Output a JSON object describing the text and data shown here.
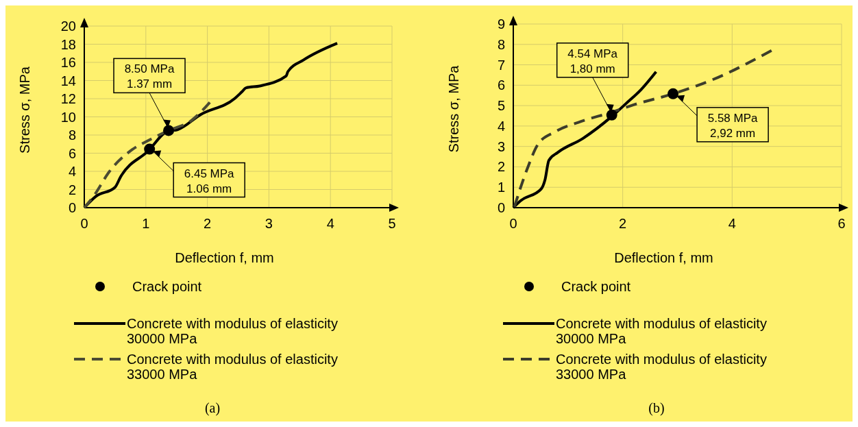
{
  "chart_data": [
    {
      "type": "line",
      "xlabel": "Deflection f, mm",
      "ylabel": "Stress σ, MPa",
      "xlim": [
        0,
        5
      ],
      "ylim": [
        0,
        20
      ],
      "xticks": [
        0,
        1,
        2,
        3,
        4,
        5
      ],
      "yticks": [
        0,
        2,
        4,
        6,
        8,
        10,
        12,
        14,
        16,
        18,
        20
      ],
      "grid": true,
      "legend": "bottom",
      "series": [
        {
          "type": "scatter",
          "name": "Crack point",
          "color": "#000000",
          "marker": "circle",
          "x": [
            1.06,
            1.37
          ],
          "values": [
            6.45,
            8.5
          ]
        },
        {
          "name": "Concrete with modulus of elasticity 30000 MPa",
          "color": "#000000",
          "line_style": "solid",
          "x": [
            0,
            0.19,
            0.5,
            0.59,
            1.04,
            1.35,
            1.52,
            1.89,
            2.44,
            2.56,
            2.63,
            2.85,
            3.28,
            3.31,
            3.56,
            4.11
          ],
          "values": [
            0,
            1.25,
            2.25,
            3.4,
            6.25,
            8.4,
            8.6,
            10.25,
            12,
            12.75,
            13.2,
            13.4,
            14.5,
            15,
            16.25,
            18.1
          ]
        },
        {
          "name": "Concrete with modulus of elasticity 33000 MPa",
          "color": "#4b4b33",
          "line_style": "dashed",
          "x": [
            0,
            0.15,
            0.41,
            0.78,
            1.04,
            1.37,
            1.74,
            2.04
          ],
          "values": [
            0,
            1.25,
            4,
            6.4,
            7.4,
            8.5,
            9.6,
            11.6
          ]
        }
      ],
      "annotations": [
        {
          "text": "8.50 MPa\n1.37 mm",
          "x": 1.37,
          "y": 8.5
        },
        {
          "text": "6.45 MPa\n1.06 mm",
          "x": 1.06,
          "y": 6.45
        },
        "(a)"
      ]
    },
    {
      "type": "line",
      "xlabel": "Deflection f, mm",
      "ylabel": "Stress σ, MPa",
      "xlim": [
        0,
        6
      ],
      "ylim": [
        0,
        9
      ],
      "xticks": [
        0,
        2,
        4,
        6
      ],
      "yticks": [
        0,
        1,
        2,
        3,
        4,
        5,
        6,
        7,
        8,
        9
      ],
      "grid": true,
      "legend": "bottom",
      "series": [
        {
          "type": "scatter",
          "name": "Crack point",
          "color": "#000000",
          "marker": "circle",
          "x": [
            1.8,
            2.92
          ],
          "values": [
            4.54,
            5.58
          ]
        },
        {
          "name": "Concrete with modulus of elasticity 30000 MPa",
          "color": "#000000",
          "line_style": "solid",
          "x": [
            0,
            0.14,
            0.51,
            0.58,
            0.65,
            0.81,
            1.27,
            1.8,
            2.06,
            2.34,
            2.61
          ],
          "values": [
            0,
            0.35,
            0.92,
            1.37,
            2.32,
            2.7,
            3.39,
            4.47,
            5.1,
            5.8,
            6.66
          ]
        },
        {
          "name": "Concrete with modulus of elasticity 33000 MPa",
          "color": "#3d3d2b",
          "line_style": "dashed",
          "x": [
            0.02,
            0.25,
            0.46,
            0.76,
            1.23,
            1.78,
            2.2,
            2.92,
            3.73,
            4.72
          ],
          "values": [
            0.04,
            1.87,
            3.14,
            3.71,
            4.22,
            4.66,
            5.04,
            5.58,
            6.37,
            7.7
          ]
        }
      ],
      "annotations": [
        {
          "text": "4.54 MPa\n1,80 mm",
          "x": 1.8,
          "y": 4.54
        },
        {
          "text": "5.58 MPa\n2,92 mm",
          "x": 2.92,
          "y": 5.58
        },
        "(b)"
      ]
    }
  ]
}
